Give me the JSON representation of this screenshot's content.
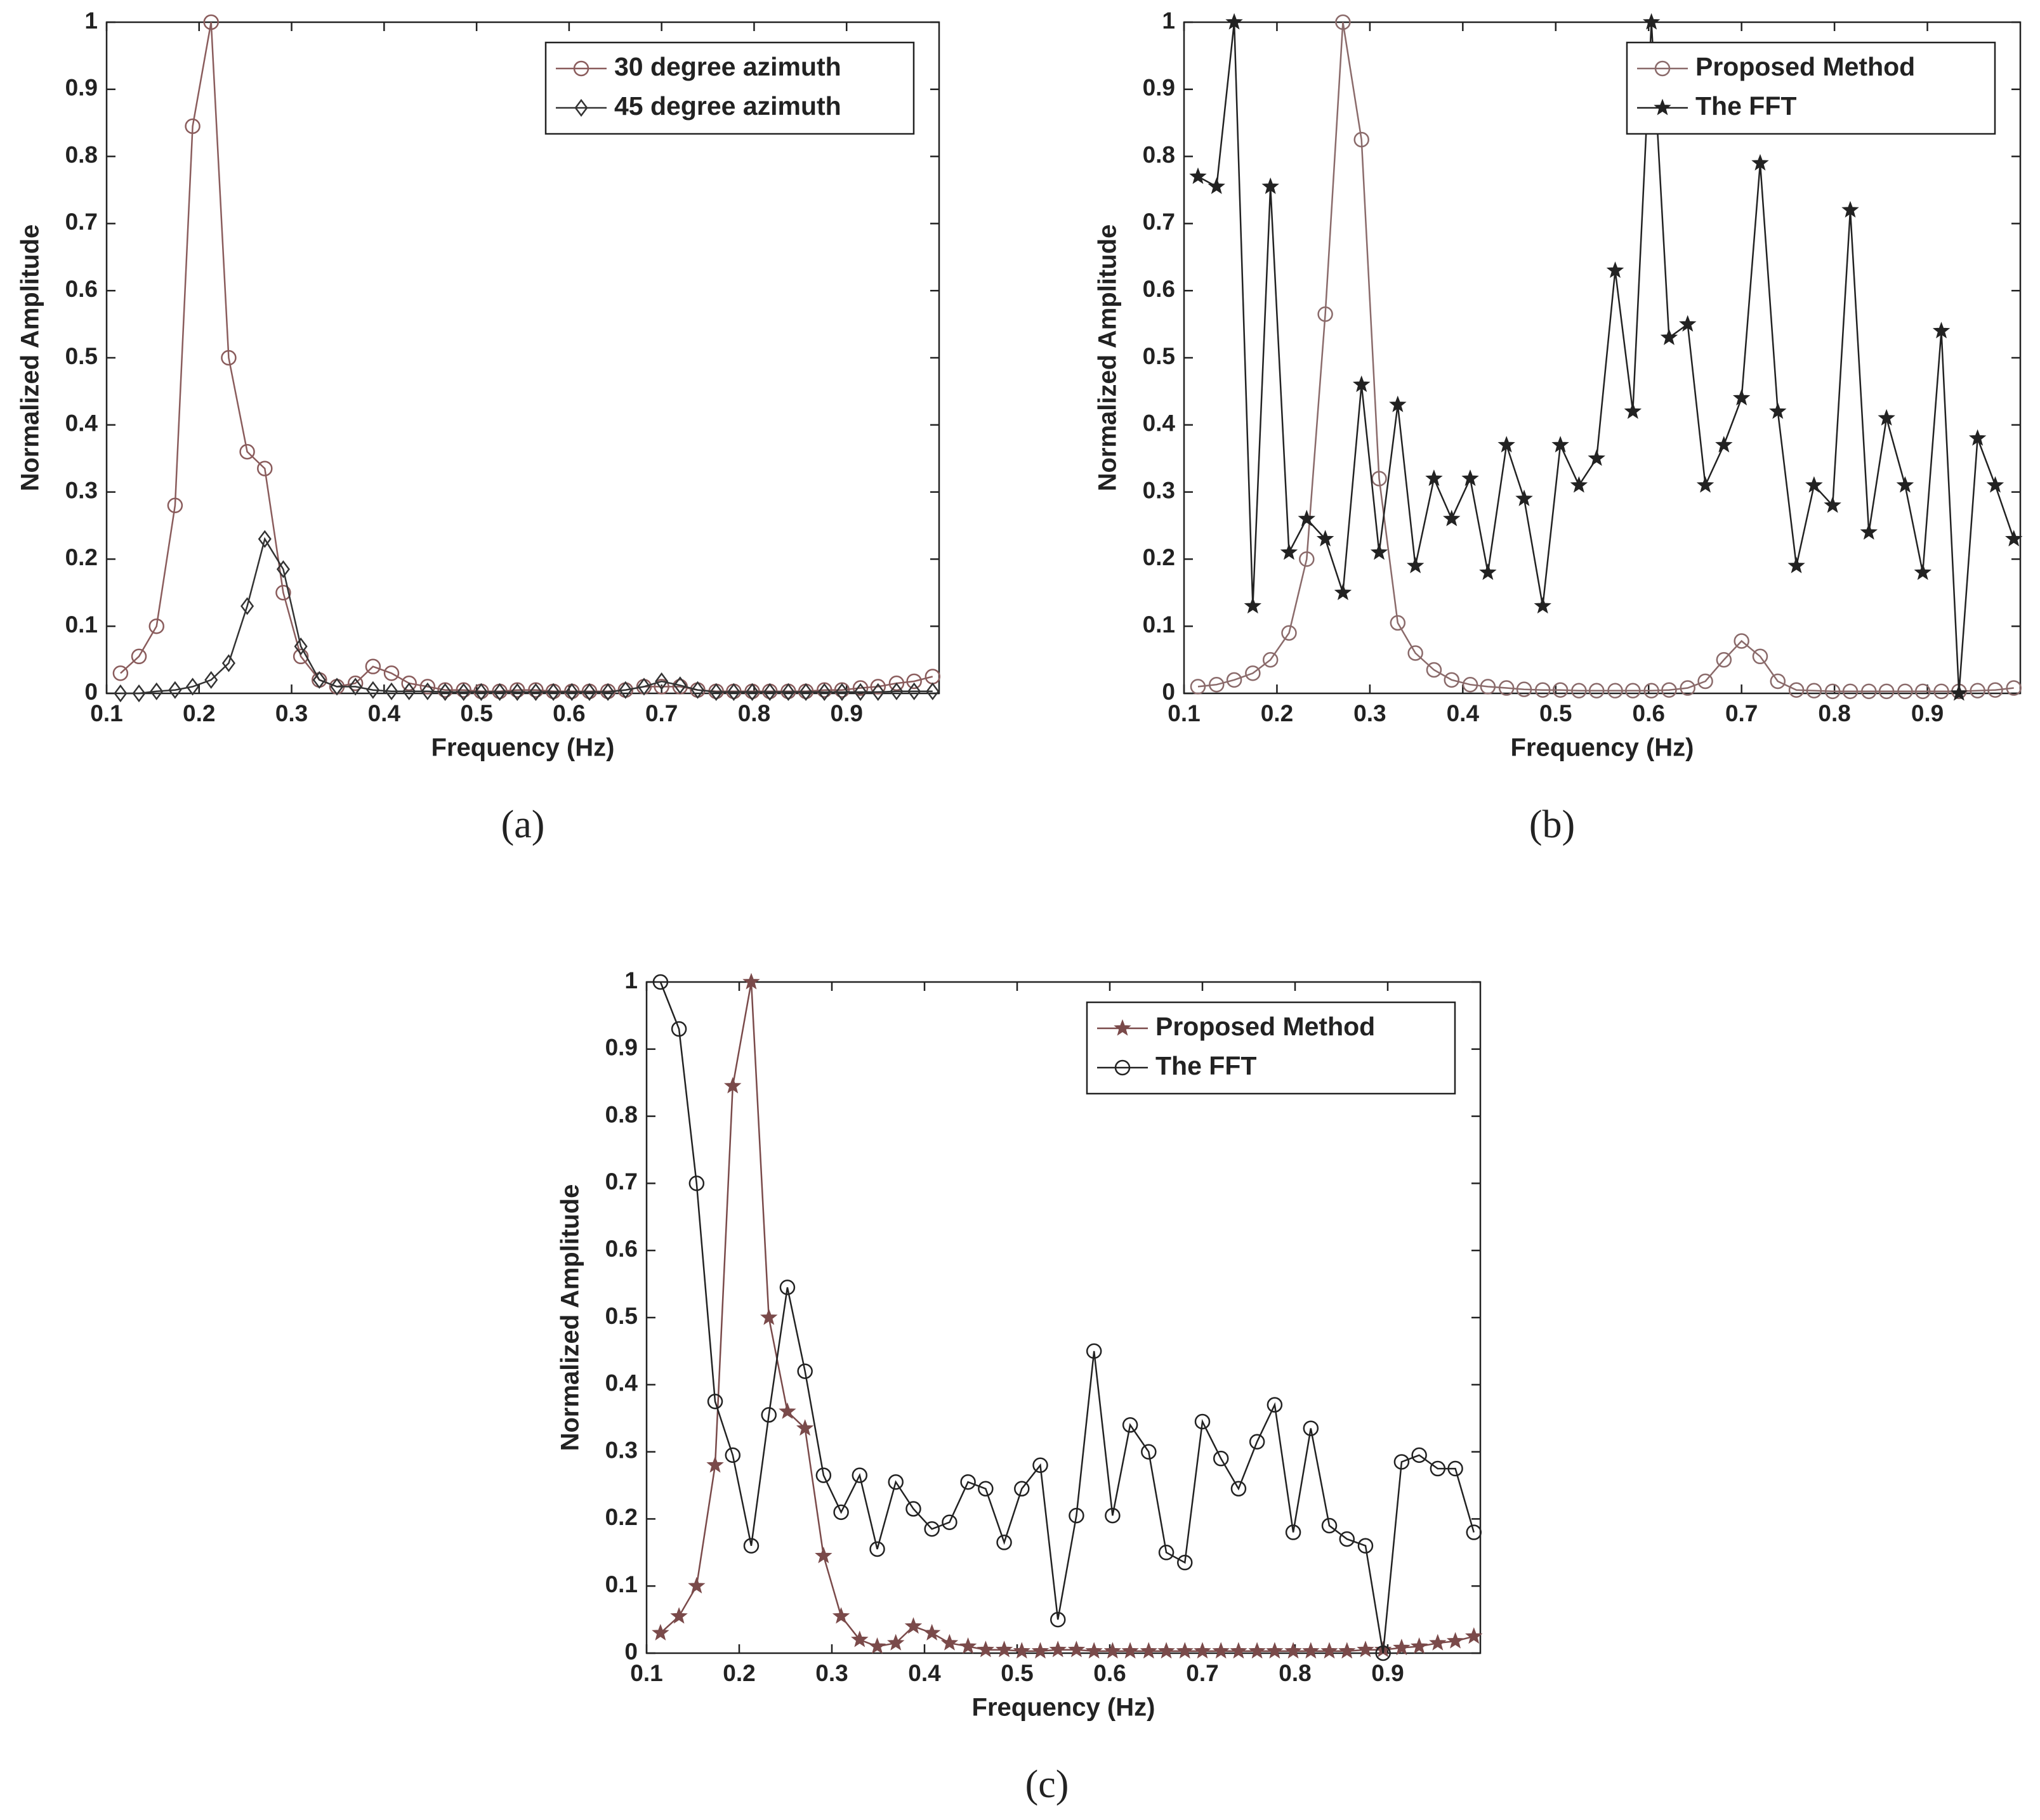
{
  "chart_data": [
    {
      "type": "line",
      "label": "(a)",
      "xlabel": "Frequency (Hz)",
      "ylabel": "Normalized Amplitude",
      "xlim": [
        0.1,
        1.0
      ],
      "xticks": [
        0.1,
        0.2,
        0.3,
        0.4,
        0.5,
        0.6,
        0.7,
        0.8,
        0.9
      ],
      "ylim": [
        0,
        1
      ],
      "yticks": [
        0,
        0.1,
        0.2,
        0.3,
        0.4,
        0.5,
        0.6,
        0.7,
        0.8,
        0.9,
        1
      ],
      "legend": "upper right",
      "x": [
        0.115,
        0.135,
        0.154,
        0.174,
        0.193,
        0.213,
        0.232,
        0.252,
        0.271,
        0.291,
        0.31,
        0.33,
        0.349,
        0.369,
        0.388,
        0.408,
        0.427,
        0.447,
        0.466,
        0.486,
        0.505,
        0.525,
        0.544,
        0.564,
        0.583,
        0.603,
        0.622,
        0.642,
        0.661,
        0.681,
        0.7,
        0.72,
        0.739,
        0.759,
        0.778,
        0.798,
        0.817,
        0.837,
        0.856,
        0.876,
        0.895,
        0.915,
        0.934,
        0.954,
        0.973,
        0.993
      ],
      "series": [
        {
          "name": "30 degree azimuth",
          "color": "#8a5c5c",
          "marker": "circle",
          "values": [
            0.03,
            0.055,
            0.1,
            0.28,
            0.845,
            1.0,
            0.5,
            0.36,
            0.335,
            0.15,
            0.055,
            0.02,
            0.01,
            0.015,
            0.04,
            0.03,
            0.015,
            0.01,
            0.005,
            0.005,
            0.003,
            0.003,
            0.005,
            0.005,
            0.003,
            0.003,
            0.003,
            0.003,
            0.005,
            0.01,
            0.01,
            0.01,
            0.005,
            0.003,
            0.003,
            0.003,
            0.003,
            0.003,
            0.003,
            0.005,
            0.005,
            0.008,
            0.01,
            0.015,
            0.018,
            0.025
          ]
        },
        {
          "name": "45 degree azimuth",
          "color": "#333333",
          "marker": "diamond",
          "values": [
            0,
            0,
            0.003,
            0.005,
            0.01,
            0.02,
            0.045,
            0.13,
            0.23,
            0.185,
            0.07,
            0.02,
            0.01,
            0.01,
            0.005,
            0.003,
            0.003,
            0.003,
            0.002,
            0.002,
            0.002,
            0.002,
            0.002,
            0.002,
            0.002,
            0.002,
            0.002,
            0.002,
            0.005,
            0.01,
            0.018,
            0.012,
            0.005,
            0.002,
            0.002,
            0.002,
            0.002,
            0.002,
            0.002,
            0.002,
            0.002,
            0.002,
            0.002,
            0.003,
            0.003,
            0.003
          ]
        }
      ]
    },
    {
      "type": "line",
      "label": "(b)",
      "xlabel": "Frequency (Hz)",
      "ylabel": "Normalized Amplitude",
      "xlim": [
        0.1,
        1.0
      ],
      "xticks": [
        0.1,
        0.2,
        0.3,
        0.4,
        0.5,
        0.6,
        0.7,
        0.8,
        0.9
      ],
      "ylim": [
        0,
        1
      ],
      "yticks": [
        0,
        0.1,
        0.2,
        0.3,
        0.4,
        0.5,
        0.6,
        0.7,
        0.8,
        0.9,
        1
      ],
      "legend": "upper right",
      "x": [
        0.115,
        0.135,
        0.154,
        0.174,
        0.193,
        0.213,
        0.232,
        0.252,
        0.271,
        0.291,
        0.31,
        0.33,
        0.349,
        0.369,
        0.388,
        0.408,
        0.427,
        0.447,
        0.466,
        0.486,
        0.505,
        0.525,
        0.544,
        0.564,
        0.583,
        0.603,
        0.622,
        0.642,
        0.661,
        0.681,
        0.7,
        0.72,
        0.739,
        0.759,
        0.778,
        0.798,
        0.817,
        0.837,
        0.856,
        0.876,
        0.895,
        0.915,
        0.934,
        0.954,
        0.973,
        0.993
      ],
      "series": [
        {
          "name": "Proposed Method",
          "color": "#8a6a6a",
          "marker": "circle",
          "values": [
            0.01,
            0.013,
            0.02,
            0.03,
            0.05,
            0.09,
            0.2,
            0.565,
            1.0,
            0.825,
            0.32,
            0.105,
            0.06,
            0.035,
            0.02,
            0.013,
            0.01,
            0.008,
            0.006,
            0.005,
            0.005,
            0.004,
            0.004,
            0.004,
            0.004,
            0.004,
            0.005,
            0.008,
            0.018,
            0.05,
            0.078,
            0.055,
            0.018,
            0.005,
            0.004,
            0.003,
            0.003,
            0.003,
            0.003,
            0.003,
            0.003,
            0.003,
            0.003,
            0.004,
            0.005,
            0.008
          ]
        },
        {
          "name": "The FFT",
          "color": "#222222",
          "marker": "star",
          "values": [
            0.77,
            0.755,
            1.0,
            0.13,
            0.755,
            0.21,
            0.26,
            0.23,
            0.15,
            0.46,
            0.21,
            0.43,
            0.19,
            0.32,
            0.26,
            0.32,
            0.18,
            0.37,
            0.29,
            0.13,
            0.37,
            0.31,
            0.35,
            0.63,
            0.42,
            1.0,
            0.53,
            0.55,
            0.31,
            0.37,
            0.44,
            0.79,
            0.42,
            0.19,
            0.31,
            0.28,
            0.72,
            0.24,
            0.41,
            0.31,
            0.18,
            0.54,
            0.0,
            0.38,
            0.31,
            0.23
          ]
        }
      ]
    },
    {
      "type": "line",
      "label": "(c)",
      "xlabel": "Frequency (Hz)",
      "ylabel": "Normalized Amplitude",
      "xlim": [
        0.1,
        1.0
      ],
      "xticks": [
        0.1,
        0.2,
        0.3,
        0.4,
        0.5,
        0.6,
        0.7,
        0.8,
        0.9
      ],
      "ylim": [
        0,
        1
      ],
      "yticks": [
        0,
        0.1,
        0.2,
        0.3,
        0.4,
        0.5,
        0.6,
        0.7,
        0.8,
        0.9,
        1
      ],
      "legend": "upper right",
      "x": [
        0.115,
        0.135,
        0.154,
        0.174,
        0.193,
        0.213,
        0.232,
        0.252,
        0.271,
        0.291,
        0.31,
        0.33,
        0.349,
        0.369,
        0.388,
        0.408,
        0.427,
        0.447,
        0.466,
        0.486,
        0.505,
        0.525,
        0.544,
        0.564,
        0.583,
        0.603,
        0.622,
        0.642,
        0.661,
        0.681,
        0.7,
        0.72,
        0.739,
        0.759,
        0.778,
        0.798,
        0.817,
        0.837,
        0.856,
        0.876,
        0.895,
        0.915,
        0.934,
        0.954,
        0.973,
        0.993
      ],
      "series": [
        {
          "name": "Proposed Method",
          "color": "#7a4a4a",
          "marker": "star",
          "values": [
            0.03,
            0.055,
            0.1,
            0.28,
            0.845,
            1.0,
            0.5,
            0.36,
            0.335,
            0.145,
            0.055,
            0.02,
            0.01,
            0.015,
            0.04,
            0.03,
            0.015,
            0.01,
            0.005,
            0.005,
            0.003,
            0.003,
            0.005,
            0.005,
            0.003,
            0.003,
            0.003,
            0.003,
            0.003,
            0.003,
            0.003,
            0.003,
            0.003,
            0.003,
            0.003,
            0.003,
            0.003,
            0.003,
            0.003,
            0.005,
            0.005,
            0.008,
            0.01,
            0.015,
            0.018,
            0.025
          ]
        },
        {
          "name": "The FFT",
          "color": "#222222",
          "marker": "circle",
          "values": [
            1.0,
            0.93,
            0.7,
            0.375,
            0.295,
            0.16,
            0.355,
            0.545,
            0.42,
            0.265,
            0.21,
            0.265,
            0.155,
            0.255,
            0.215,
            0.185,
            0.195,
            0.255,
            0.245,
            0.165,
            0.245,
            0.28,
            0.05,
            0.205,
            0.45,
            0.205,
            0.34,
            0.3,
            0.15,
            0.135,
            0.345,
            0.29,
            0.245,
            0.315,
            0.37,
            0.18,
            0.335,
            0.19,
            0.17,
            0.16,
            0.0,
            0.285,
            0.295,
            0.275,
            0.275,
            0.18
          ]
        }
      ]
    }
  ]
}
